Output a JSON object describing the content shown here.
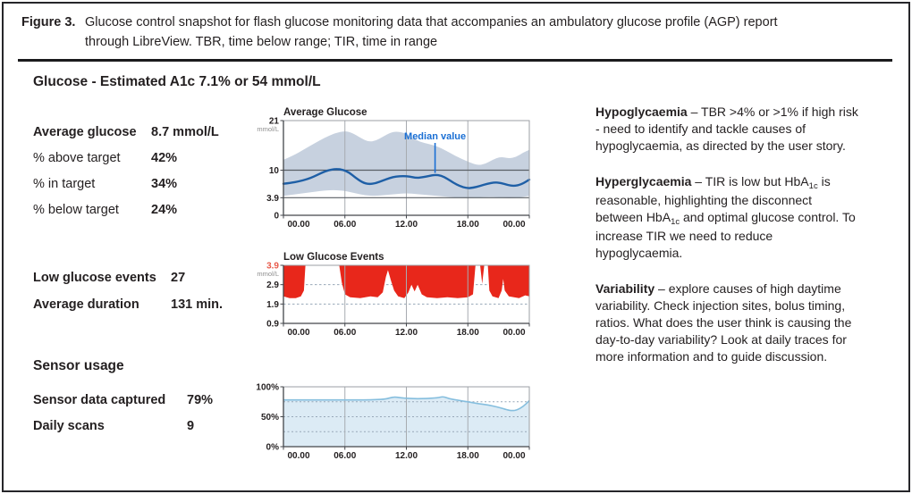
{
  "caption": {
    "label": "Figure 3.",
    "text": "Glucose control snapshot for flash glucose monitoring data that accompanies an ambulatory glucose profile (AGP) report through LibreView. TBR, time below range; TIR, time in range",
    "line1": "Glucose control snapshot for flash glucose monitoring data that accompanies an ambulatory glucose profile (AGP) report",
    "line2": "through LibreView. TBR, time below range; TIR, time in range"
  },
  "stats": {
    "header": "Glucose - Estimated A1c 7.1% or 54 mmol/L",
    "group1": {
      "rows": [
        {
          "label": "Average glucose",
          "value": "8.7 mmol/L"
        },
        {
          "label": "% above target",
          "value": "42%"
        },
        {
          "label": "% in target",
          "value": "34%"
        },
        {
          "label": "% below target",
          "value": "24%"
        }
      ]
    },
    "group2": {
      "rows": [
        {
          "label": "Low glucose events",
          "value": "27"
        },
        {
          "label": "Average duration",
          "value": "131 min."
        }
      ]
    },
    "group3": {
      "header": "Sensor usage",
      "rows": [
        {
          "label": "Sensor data captured",
          "value": "79%"
        },
        {
          "label": "Daily scans",
          "value": "9"
        }
      ]
    }
  },
  "notes": [
    {
      "lead": "Hypoglycaemia",
      "sep": " – ",
      "segments": [
        {
          "text": "TBR >4% or >1% if high risk - need to identify and tackle causes of hypoglycaemia, as directed by the user story."
        }
      ]
    },
    {
      "lead": "Hyperglycaemia",
      "sep": " – ",
      "segments": [
        {
          "text": "TIR is low but HbA"
        },
        {
          "text": "1c",
          "sub": true
        },
        {
          "text": " is reasonable, highlighting the disconnect between HbA"
        },
        {
          "text": "1c",
          "sub": true
        },
        {
          "text": " and optimal glucose control. To increase TIR we need to reduce hypoglycaemia."
        }
      ]
    },
    {
      "lead": "Variability",
      "sep": " – ",
      "segments": [
        {
          "text": "explore causes of high daytime variability. Check injection sites, bolus timing, ratios. What does the user think is causing the day-to-day variability? Look at daily traces for more information and to guide discussion."
        }
      ]
    }
  ],
  "colors": {
    "median_line": "#1e5fa6",
    "percentile_band": "#c7d1df",
    "annotation_blue": "#1a6fd4",
    "low_glucose_red": "#e8271b",
    "red_tick_label": "#e8594a",
    "sensor_fill": "#dcebf5",
    "sensor_line": "#85bede",
    "grid_gray": "#a7abb0",
    "dashed_bluegray": "#97a7b8",
    "axis_dark": "#43464b",
    "target_line": "#5a5f65",
    "border_gray": "#9b9fa4",
    "text_dark": "#231f20",
    "unit_gray": "#8e8e8e"
  },
  "chart_data": [
    {
      "type": "area",
      "title": "Average Glucose",
      "unit": "mmol/L",
      "xlim": [
        0,
        24
      ],
      "ylim": [
        0,
        21
      ],
      "xticks": [
        {
          "t": 0,
          "label": "00.00"
        },
        {
          "t": 6,
          "label": "06.00"
        },
        {
          "t": 12,
          "label": "12.00"
        },
        {
          "t": 18,
          "label": "18.00"
        },
        {
          "t": 24,
          "label": "00.00"
        }
      ],
      "yticks": [
        {
          "v": 21,
          "label": "21"
        },
        {
          "v": 10,
          "label": "10"
        },
        {
          "v": 3.9,
          "label": "3.9"
        },
        {
          "v": 0,
          "label": "0"
        }
      ],
      "target_lines": [
        10,
        3.9
      ],
      "annotation": {
        "text": "Median value",
        "t": 14.8
      },
      "series": [
        {
          "name": "median",
          "points": [
            [
              0,
              7.0
            ],
            [
              0.7,
              7.2
            ],
            [
              1.5,
              7.5
            ],
            [
              2.3,
              8.0
            ],
            [
              3,
              8.6
            ],
            [
              3.7,
              9.4
            ],
            [
              4.4,
              10.0
            ],
            [
              5.1,
              10.3
            ],
            [
              5.8,
              10.1
            ],
            [
              6.4,
              9.5
            ],
            [
              7,
              8.4
            ],
            [
              7.7,
              7.3
            ],
            [
              8.3,
              6.9
            ],
            [
              9,
              7.1
            ],
            [
              9.7,
              7.7
            ],
            [
              10.4,
              8.3
            ],
            [
              11,
              8.6
            ],
            [
              11.7,
              8.7
            ],
            [
              12.3,
              8.6
            ],
            [
              12.9,
              8.3
            ],
            [
              13.5,
              8.4
            ],
            [
              14.2,
              8.7
            ],
            [
              14.8,
              9.0
            ],
            [
              15.4,
              8.8
            ],
            [
              16,
              8.1
            ],
            [
              16.6,
              7.2
            ],
            [
              17.2,
              6.5
            ],
            [
              17.9,
              6.0
            ],
            [
              18.5,
              6.1
            ],
            [
              19.2,
              6.5
            ],
            [
              19.9,
              7.0
            ],
            [
              20.6,
              7.3
            ],
            [
              21.2,
              7.2
            ],
            [
              21.9,
              6.7
            ],
            [
              22.5,
              6.5
            ],
            [
              23.2,
              6.8
            ],
            [
              24,
              7.9
            ]
          ]
        },
        {
          "name": "percentile_upper",
          "points": [
            [
              0,
              12.3
            ],
            [
              1,
              13.3
            ],
            [
              2,
              14.6
            ],
            [
              3,
              15.9
            ],
            [
              4,
              17.2
            ],
            [
              5,
              18.2
            ],
            [
              6,
              18.7
            ],
            [
              6.7,
              18.3
            ],
            [
              7.5,
              17.2
            ],
            [
              8.3,
              16.3
            ],
            [
              9,
              16.5
            ],
            [
              9.7,
              17.4
            ],
            [
              10.4,
              18.3
            ],
            [
              11,
              18.6
            ],
            [
              11.8,
              18.3
            ],
            [
              12.5,
              17.3
            ],
            [
              13.3,
              16.3
            ],
            [
              14.2,
              15.8
            ],
            [
              15,
              15.3
            ],
            [
              15.8,
              14.4
            ],
            [
              16.6,
              13.4
            ],
            [
              17.4,
              12.5
            ],
            [
              18.2,
              11.7
            ],
            [
              19,
              11.1
            ],
            [
              19.7,
              11.4
            ],
            [
              20.4,
              12.3
            ],
            [
              21.2,
              13.0
            ],
            [
              22,
              12.6
            ],
            [
              22.7,
              12.9
            ],
            [
              23.4,
              13.9
            ],
            [
              24,
              14.5
            ]
          ]
        },
        {
          "name": "percentile_lower",
          "points": [
            [
              0,
              4.3
            ],
            [
              1,
              4.6
            ],
            [
              2,
              4.9
            ],
            [
              3,
              5.2
            ],
            [
              4,
              5.5
            ],
            [
              5,
              5.6
            ],
            [
              6,
              5.4
            ],
            [
              7,
              4.9
            ],
            [
              8,
              4.4
            ],
            [
              9,
              4.3
            ],
            [
              10,
              4.5
            ],
            [
              11,
              4.7
            ],
            [
              12,
              4.9
            ],
            [
              13,
              4.7
            ],
            [
              14,
              4.5
            ],
            [
              15,
              4.3
            ],
            [
              16,
              4.1
            ],
            [
              17,
              3.9
            ],
            [
              18,
              3.8
            ],
            [
              19,
              3.9
            ],
            [
              20,
              4.1
            ],
            [
              21,
              4.0
            ],
            [
              22,
              3.7
            ],
            [
              23,
              3.9
            ],
            [
              24,
              4.3
            ]
          ]
        }
      ]
    },
    {
      "type": "area",
      "title": "Low Glucose Events",
      "unit": "mmol/L",
      "inverted_fill_from": 3.9,
      "xlim": [
        0,
        24
      ],
      "ylim": [
        0.9,
        3.9
      ],
      "xticks": [
        {
          "t": 0,
          "label": "00.00"
        },
        {
          "t": 6,
          "label": "06.00"
        },
        {
          "t": 12,
          "label": "12.00"
        },
        {
          "t": 18,
          "label": "18.00"
        },
        {
          "t": 24,
          "label": "00.00"
        }
      ],
      "yticks": [
        {
          "v": 3.9,
          "label": "3.9",
          "red": true
        },
        {
          "v": 2.9,
          "label": "2.9"
        },
        {
          "v": 1.9,
          "label": "1.9"
        },
        {
          "v": 0.9,
          "label": "0.9"
        }
      ],
      "dashed_lines": [
        2.9,
        1.9
      ],
      "series": [
        {
          "name": "low_glucose_edge",
          "points": [
            [
              0,
              2.3
            ],
            [
              0.6,
              2.2
            ],
            [
              1.2,
              2.2
            ],
            [
              1.7,
              2.3
            ],
            [
              2.0,
              2.6
            ],
            [
              2.15,
              3.9
            ],
            [
              5.45,
              3.9
            ],
            [
              5.7,
              3.0
            ],
            [
              6.0,
              2.4
            ],
            [
              6.5,
              2.25
            ],
            [
              7.5,
              2.2
            ],
            [
              8.5,
              2.3
            ],
            [
              9.2,
              2.25
            ],
            [
              9.7,
              2.5
            ],
            [
              10.0,
              3.3
            ],
            [
              10.2,
              3.65
            ],
            [
              10.5,
              3.1
            ],
            [
              10.8,
              2.6
            ],
            [
              11.2,
              2.3
            ],
            [
              11.8,
              2.2
            ],
            [
              12.2,
              2.5
            ],
            [
              12.5,
              2.9
            ],
            [
              12.8,
              2.55
            ],
            [
              13.1,
              2.9
            ],
            [
              13.5,
              2.4
            ],
            [
              14,
              2.25
            ],
            [
              15,
              2.2
            ],
            [
              16,
              2.25
            ],
            [
              17,
              2.2
            ],
            [
              18,
              2.25
            ],
            [
              18.5,
              2.4
            ],
            [
              18.75,
              3.9
            ],
            [
              19.2,
              3.9
            ],
            [
              19.4,
              2.95
            ],
            [
              19.6,
              3.9
            ],
            [
              19.95,
              3.9
            ],
            [
              20.1,
              2.6
            ],
            [
              20.4,
              2.3
            ],
            [
              21,
              2.2
            ],
            [
              21.3,
              2.6
            ],
            [
              21.45,
              3.2
            ],
            [
              21.6,
              2.6
            ],
            [
              22,
              2.3
            ],
            [
              23,
              2.2
            ],
            [
              23.6,
              2.35
            ],
            [
              24,
              2.3
            ]
          ]
        }
      ]
    },
    {
      "type": "area",
      "title": "",
      "unit": "%",
      "xlim": [
        0,
        24
      ],
      "ylim": [
        0,
        100
      ],
      "xticks": [
        {
          "t": 0,
          "label": "00.00"
        },
        {
          "t": 6,
          "label": "06.00"
        },
        {
          "t": 12,
          "label": "12.00"
        },
        {
          "t": 18,
          "label": "18.00"
        },
        {
          "t": 24,
          "label": "00.00"
        }
      ],
      "yticks": [
        {
          "v": 100,
          "label": "100%"
        },
        {
          "v": 50,
          "label": "50%"
        },
        {
          "v": 0,
          "label": "0%"
        }
      ],
      "dashed_lines": [
        75,
        50,
        25
      ],
      "series": [
        {
          "name": "sensor_usage_pct",
          "points": [
            [
              0,
              78
            ],
            [
              2,
              78
            ],
            [
              4,
              78
            ],
            [
              6,
              78
            ],
            [
              8,
              78
            ],
            [
              9,
              78.5
            ],
            [
              10,
              79.5
            ],
            [
              10.6,
              82.5
            ],
            [
              11,
              83
            ],
            [
              11.5,
              81.5
            ],
            [
              12,
              81
            ],
            [
              13,
              80
            ],
            [
              14,
              80.5
            ],
            [
              15,
              81.5
            ],
            [
              15.6,
              84
            ],
            [
              16.2,
              80
            ],
            [
              17,
              77.5
            ],
            [
              18,
              75
            ],
            [
              19,
              72
            ],
            [
              20,
              69.5
            ],
            [
              21,
              66
            ],
            [
              21.8,
              61.5
            ],
            [
              22.3,
              60
            ],
            [
              22.8,
              61
            ],
            [
              23.4,
              67
            ],
            [
              24,
              77
            ]
          ]
        }
      ]
    }
  ]
}
